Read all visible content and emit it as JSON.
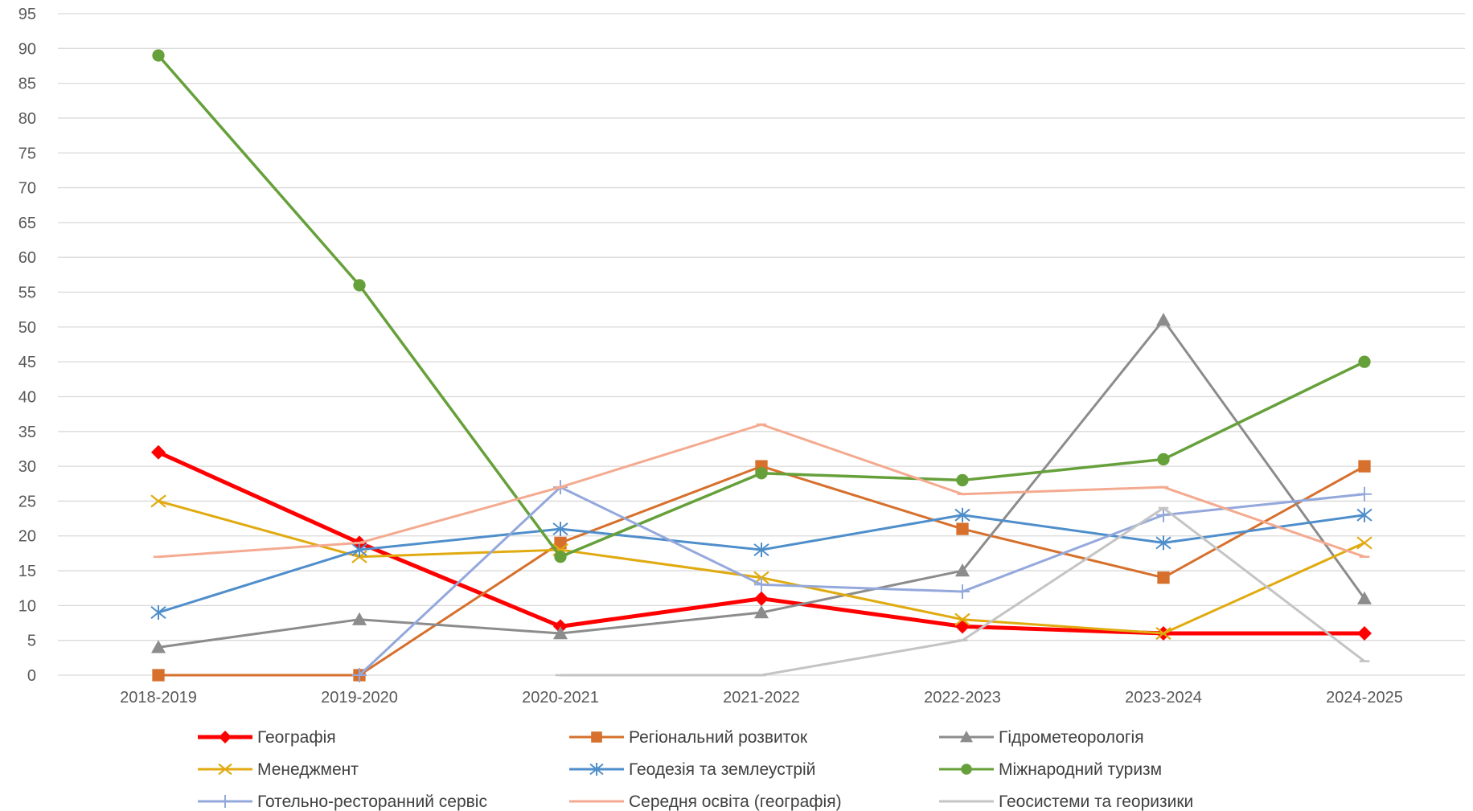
{
  "chart_data": {
    "type": "line",
    "title": "",
    "xlabel": "",
    "ylabel": "",
    "categories": [
      "2018-2019",
      "2019-2020",
      "2020-2021",
      "2021-2022",
      "2022-2023",
      "2023-2024",
      "2024-2025"
    ],
    "ylim": [
      0,
      95
    ],
    "yticks": [
      0,
      5,
      10,
      15,
      20,
      25,
      30,
      35,
      40,
      45,
      50,
      55,
      60,
      65,
      70,
      75,
      80,
      85,
      90,
      95
    ],
    "grid": true,
    "legend_position": "bottom",
    "series": [
      {
        "name": "Географія",
        "color": "#ff0000",
        "marker": "diamond",
        "values": [
          32,
          19,
          7,
          11,
          7,
          6,
          6
        ]
      },
      {
        "name": "Регіональний розвиток",
        "color": "#d6702c",
        "marker": "square",
        "values": [
          0,
          0,
          19,
          30,
          21,
          14,
          30
        ]
      },
      {
        "name": "Гідрометеорологія",
        "color": "#8c8c8c",
        "marker": "triangle",
        "values": [
          4,
          8,
          6,
          9,
          15,
          51,
          11
        ]
      },
      {
        "name": "Менеджмент",
        "color": "#e0aa10",
        "marker": "x",
        "values": [
          25,
          17,
          18,
          14,
          8,
          6,
          19
        ]
      },
      {
        "name": "Геодезія та землеустрій",
        "color": "#4e8ecb",
        "marker": "star",
        "values": [
          9,
          18,
          21,
          18,
          23,
          19,
          23
        ]
      },
      {
        "name": "Міжнародний туризм",
        "color": "#66a03a",
        "marker": "circle",
        "values": [
          89,
          56,
          17,
          29,
          28,
          31,
          45
        ]
      },
      {
        "name": "Готельно-ресторанний сервіс",
        "color": "#94a8dc",
        "marker": "plus",
        "values": [
          null,
          0,
          27,
          13,
          12,
          23,
          26
        ]
      },
      {
        "name": "Середня освіта (географія)",
        "color": "#f4aa90",
        "marker": "dash",
        "values": [
          17,
          19,
          27,
          36,
          26,
          27,
          17
        ]
      },
      {
        "name": "Геосистеми та георизики",
        "color": "#c4c4c4",
        "marker": "dash",
        "values": [
          null,
          null,
          0,
          0,
          5,
          24,
          2
        ]
      }
    ]
  }
}
